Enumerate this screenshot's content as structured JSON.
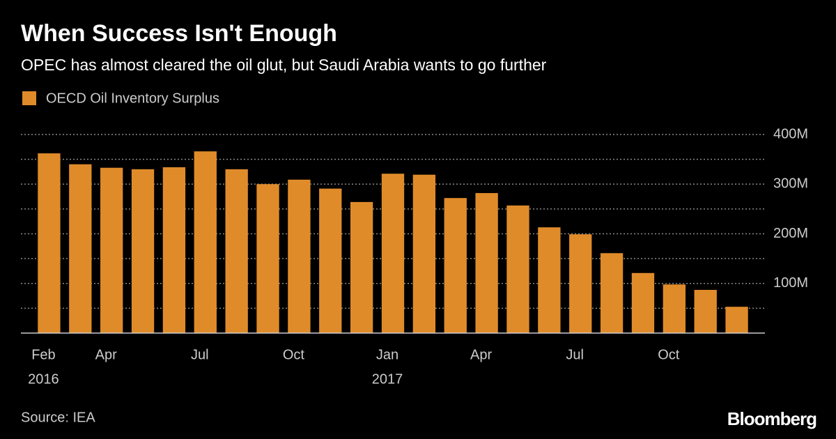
{
  "chart_data": {
    "type": "bar",
    "title": "When Success Isn't Enough",
    "subtitle": "OPEC has almost cleared the oil glut, but Saudi Arabia wants to go further",
    "categories": [
      "Feb",
      null,
      "Apr",
      null,
      null,
      "Jul",
      null,
      null,
      "Oct",
      null,
      null,
      "Jan",
      null,
      null,
      "Apr",
      null,
      null,
      "Jul",
      null,
      null,
      "Oct",
      null,
      null
    ],
    "category_years": [
      "2016",
      null,
      null,
      null,
      null,
      null,
      null,
      null,
      null,
      null,
      null,
      "2017",
      null,
      null,
      null,
      null,
      null,
      null,
      null,
      null,
      null,
      null,
      null
    ],
    "series": [
      {
        "name": "OECD Oil Inventory Surplus",
        "color": "#e08b2a",
        "values": [
          362,
          340,
          333,
          330,
          334,
          366,
          330,
          300,
          309,
          291,
          264,
          321,
          319,
          272,
          282,
          257,
          213,
          199,
          161,
          121,
          98,
          87,
          53
        ]
      }
    ],
    "ylim": [
      0,
      400
    ],
    "yticks": [
      {
        "value": 100,
        "label": "100M"
      },
      {
        "value": 200,
        "label": "200M"
      },
      {
        "value": 300,
        "label": "300M"
      },
      {
        "value": 400,
        "label": "400M"
      }
    ],
    "minor_yticks": [
      50,
      150,
      250,
      350
    ],
    "grid": true,
    "source": "Source: IEA",
    "brand": "Bloomberg"
  }
}
